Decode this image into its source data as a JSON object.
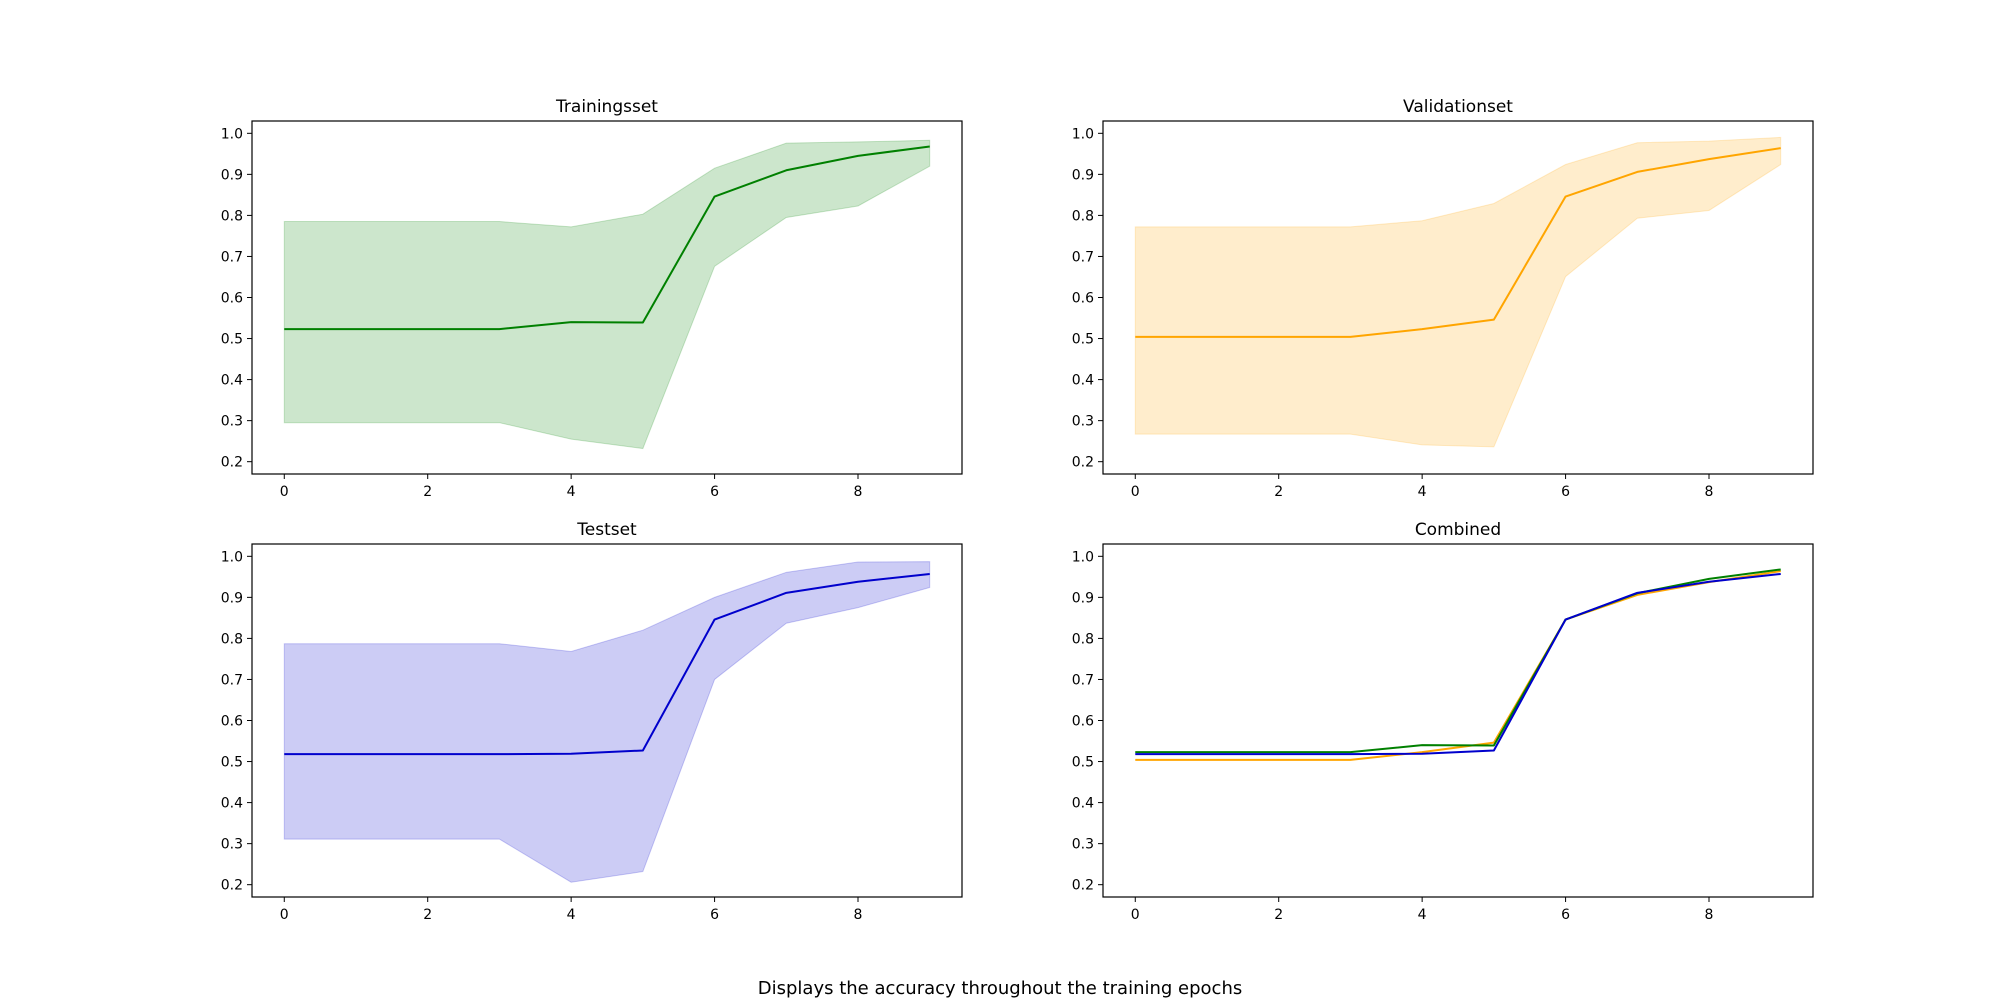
{
  "figure": {
    "caption": "Displays the accuracy throughout the training epochs"
  },
  "chart_data": [
    {
      "type": "line",
      "title": "Trainingsset",
      "xlabel": "",
      "ylabel": "",
      "xlim": [
        -0.45,
        9.45
      ],
      "ylim": [
        0.17,
        1.03
      ],
      "xticks": [
        0,
        2,
        4,
        6,
        8
      ],
      "yticks": [
        0.2,
        0.3,
        0.4,
        0.5,
        0.6,
        0.7,
        0.8,
        0.9,
        1.0
      ],
      "grid": false,
      "x": [
        0,
        1,
        2,
        3,
        4,
        5,
        6,
        7,
        8,
        9
      ],
      "series": [
        {
          "color": "#008000",
          "values": [
            0.523,
            0.523,
            0.523,
            0.523,
            0.54,
            0.539,
            0.846,
            0.91,
            0.945,
            0.968
          ],
          "band_lower": [
            0.295,
            0.295,
            0.295,
            0.295,
            0.255,
            0.232,
            0.676,
            0.795,
            0.823,
            0.92
          ],
          "band_upper": [
            0.785,
            0.785,
            0.785,
            0.785,
            0.772,
            0.803,
            0.915,
            0.976,
            0.979,
            0.983
          ]
        }
      ]
    },
    {
      "type": "line",
      "title": "Validationset",
      "xlabel": "",
      "ylabel": "",
      "xlim": [
        -0.45,
        9.45
      ],
      "ylim": [
        0.17,
        1.03
      ],
      "xticks": [
        0,
        2,
        4,
        6,
        8
      ],
      "yticks": [
        0.2,
        0.3,
        0.4,
        0.5,
        0.6,
        0.7,
        0.8,
        0.9,
        1.0
      ],
      "grid": false,
      "x": [
        0,
        1,
        2,
        3,
        4,
        5,
        6,
        7,
        8,
        9
      ],
      "series": [
        {
          "color": "#ffa500",
          "values": [
            0.504,
            0.504,
            0.504,
            0.504,
            0.523,
            0.546,
            0.846,
            0.906,
            0.937,
            0.964
          ],
          "band_lower": [
            0.267,
            0.267,
            0.267,
            0.267,
            0.241,
            0.236,
            0.651,
            0.793,
            0.812,
            0.924
          ],
          "band_upper": [
            0.772,
            0.772,
            0.772,
            0.772,
            0.787,
            0.829,
            0.924,
            0.977,
            0.981,
            0.99
          ]
        }
      ]
    },
    {
      "type": "line",
      "title": "Testset",
      "xlabel": "",
      "ylabel": "",
      "xlim": [
        -0.45,
        9.45
      ],
      "ylim": [
        0.17,
        1.03
      ],
      "xticks": [
        0,
        2,
        4,
        6,
        8
      ],
      "yticks": [
        0.2,
        0.3,
        0.4,
        0.5,
        0.6,
        0.7,
        0.8,
        0.9,
        1.0
      ],
      "grid": false,
      "x": [
        0,
        1,
        2,
        3,
        4,
        5,
        6,
        7,
        8,
        9
      ],
      "series": [
        {
          "color": "#0000cc",
          "values": [
            0.518,
            0.518,
            0.518,
            0.518,
            0.519,
            0.527,
            0.846,
            0.911,
            0.938,
            0.957
          ],
          "band_lower": [
            0.311,
            0.311,
            0.311,
            0.311,
            0.206,
            0.232,
            0.7,
            0.837,
            0.875,
            0.924
          ],
          "band_upper": [
            0.787,
            0.787,
            0.787,
            0.787,
            0.768,
            0.82,
            0.9,
            0.961,
            0.986,
            0.987
          ]
        }
      ]
    },
    {
      "type": "line",
      "title": "Combined",
      "xlabel": "",
      "ylabel": "",
      "xlim": [
        -0.45,
        9.45
      ],
      "ylim": [
        0.17,
        1.03
      ],
      "xticks": [
        0,
        2,
        4,
        6,
        8
      ],
      "yticks": [
        0.2,
        0.3,
        0.4,
        0.5,
        0.6,
        0.7,
        0.8,
        0.9,
        1.0
      ],
      "grid": false,
      "x": [
        0,
        1,
        2,
        3,
        4,
        5,
        6,
        7,
        8,
        9
      ],
      "series": [
        {
          "color": "#ffa500",
          "values": [
            0.504,
            0.504,
            0.504,
            0.504,
            0.523,
            0.546,
            0.846,
            0.906,
            0.937,
            0.964
          ]
        },
        {
          "color": "#008000",
          "values": [
            0.523,
            0.523,
            0.523,
            0.523,
            0.54,
            0.539,
            0.846,
            0.91,
            0.945,
            0.968
          ]
        },
        {
          "color": "#0000cc",
          "values": [
            0.518,
            0.518,
            0.518,
            0.518,
            0.519,
            0.527,
            0.846,
            0.911,
            0.938,
            0.957
          ]
        }
      ]
    }
  ]
}
